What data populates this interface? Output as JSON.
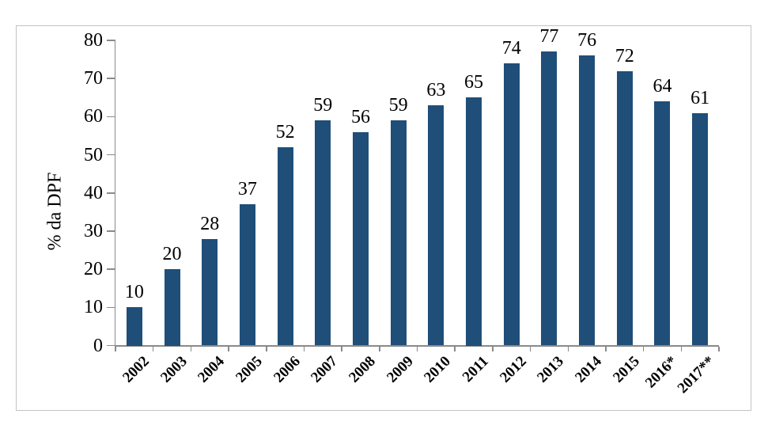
{
  "chart_data": {
    "type": "bar",
    "title": "",
    "categories": [
      "2002",
      "2003",
      "2004",
      "2005",
      "2006",
      "2007",
      "2008",
      "2009",
      "2010",
      "2011",
      "2012",
      "2013",
      "2014",
      "2015",
      "2016*",
      "2017**"
    ],
    "values": [
      10,
      20,
      28,
      37,
      52,
      59,
      56,
      59,
      63,
      65,
      74,
      77,
      76,
      72,
      64,
      61
    ],
    "data_labels": [
      "10",
      "20",
      "28",
      "37",
      "52",
      "59",
      "56",
      "59",
      "63",
      "65",
      "74",
      "77",
      "76",
      "72",
      "64",
      "61"
    ],
    "xlabel": "",
    "ylabel": "% da DPF",
    "ylim": [
      0,
      80
    ],
    "yticks": [
      0,
      10,
      20,
      30,
      40,
      50,
      60,
      70,
      80
    ],
    "grid": false,
    "legend": "none",
    "bar_color": "#1f4e79",
    "axis_color": "#8a8a8a",
    "text_color": "#000000",
    "frame_border_color": "#c3c3c3",
    "background_color": "#ffffff"
  }
}
